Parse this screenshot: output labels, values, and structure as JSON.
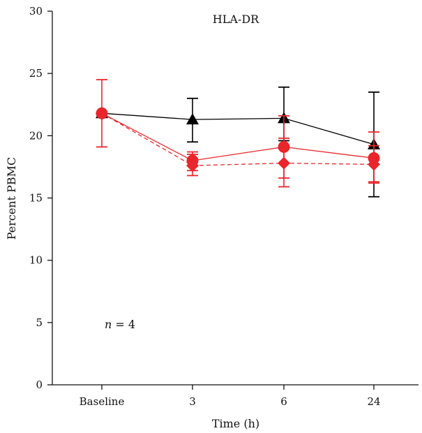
{
  "chart_data": {
    "type": "line",
    "title": "HLA-DR",
    "xlabel": "Time (h)",
    "ylabel": "Percent PBMC",
    "categories": [
      "Baseline",
      "3",
      "6",
      "24"
    ],
    "ylim": [
      0,
      30
    ],
    "yticks": [
      0,
      5,
      10,
      15,
      20,
      25,
      30
    ],
    "annotation": {
      "var": "n",
      "text": " = 4"
    },
    "series": [
      {
        "color": "#000000",
        "marker": "triangle",
        "dash": "solid",
        "values": [
          21.8,
          21.3,
          21.4,
          19.3
        ],
        "err_low": [
          21.8,
          19.5,
          19.6,
          15.1
        ],
        "err_high": [
          21.8,
          23.0,
          23.9,
          23.5
        ]
      },
      {
        "color": "#e8262b",
        "marker": "circle",
        "dash": "solid",
        "values": [
          21.8,
          18.0,
          19.1,
          18.2
        ],
        "err_low": [
          19.1,
          17.2,
          16.6,
          16.2
        ],
        "err_high": [
          24.5,
          18.7,
          21.6,
          20.3
        ]
      },
      {
        "color": "#e8262b",
        "marker": "diamond",
        "dash": "dashed",
        "values": [
          21.8,
          17.6,
          17.8,
          17.7
        ],
        "err_low": [
          21.8,
          16.8,
          15.9,
          16.3
        ],
        "err_high": [
          21.8,
          18.5,
          19.8,
          19.2
        ]
      }
    ]
  }
}
